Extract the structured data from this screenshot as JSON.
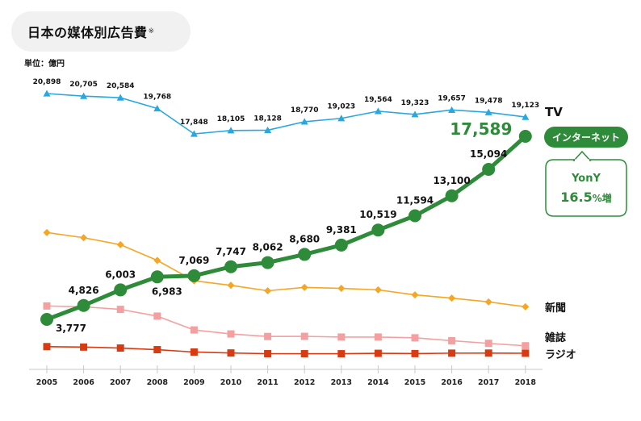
{
  "title": "日本の媒体別広告費",
  "title_note": "※",
  "unit": "単位：億円",
  "colors": {
    "tv": "#29a7df",
    "internet": "#2e8b3a",
    "newspaper": "#f5a623",
    "magazine": "#f4a0a0",
    "radio": "#d83a12"
  },
  "chart_data": {
    "type": "line",
    "x": [
      "2005",
      "2006",
      "2007",
      "2008",
      "2009",
      "2010",
      "2011",
      "2012",
      "2013",
      "2014",
      "2015",
      "2016",
      "2017",
      "2018"
    ],
    "grid": false,
    "series": [
      {
        "name": "TV",
        "key": "tv",
        "marker": "triangle",
        "values": [
          20898,
          20705,
          20584,
          19768,
          17848,
          18105,
          18128,
          18770,
          19023,
          19564,
          19323,
          19657,
          19478,
          19123
        ],
        "labels": [
          "20,898",
          "20,705",
          "20,584",
          "19,768",
          "17,848",
          "18,105",
          "18,128",
          "18,770",
          "19,023",
          "19,564",
          "19,323",
          "19,657",
          "19,478",
          "19,123"
        ]
      },
      {
        "name": "インターネット",
        "key": "internet",
        "marker": "circle",
        "values": [
          3777,
          4826,
          6003,
          6983,
          7069,
          7747,
          8062,
          8680,
          9381,
          10519,
          11594,
          13100,
          15094,
          17589
        ],
        "labels": [
          "3,777",
          "4,826",
          "6,003",
          "6,983",
          "7,069",
          "7,747",
          "8,062",
          "8,680",
          "9,381",
          "10,519",
          "11,594",
          "13,100",
          "15,094",
          "17,589"
        ]
      },
      {
        "name": "新聞",
        "key": "newspaper",
        "marker": "diamond",
        "values": [
          10377,
          9986,
          9462,
          8276,
          6739,
          6396,
          5990,
          6242,
          6170,
          6057,
          5679,
          5431,
          5147,
          4784
        ]
      },
      {
        "name": "雑誌",
        "key": "magazine",
        "marker": "square",
        "values": [
          4842,
          4777,
          4585,
          4078,
          3034,
          2733,
          2542,
          2551,
          2499,
          2500,
          2443,
          2223,
          2023,
          1841
        ]
      },
      {
        "name": "ラジオ",
        "key": "radio",
        "marker": "square",
        "values": [
          1778,
          1744,
          1671,
          1549,
          1370,
          1299,
          1247,
          1246,
          1243,
          1272,
          1254,
          1285,
          1290,
          1278
        ]
      }
    ],
    "callout": {
      "label": "YonY",
      "value": "16.5",
      "suffix": "%増"
    }
  }
}
